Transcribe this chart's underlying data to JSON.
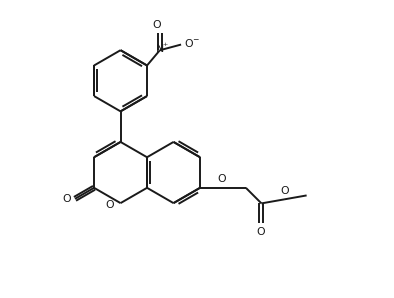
{
  "bg_color": "#ffffff",
  "line_color": "#1a1a1a",
  "line_width": 1.4,
  "figsize": [
    3.94,
    2.98
  ],
  "dpi": 100,
  "xlim": [
    0,
    10
  ],
  "ylim": [
    0,
    7.6
  ]
}
